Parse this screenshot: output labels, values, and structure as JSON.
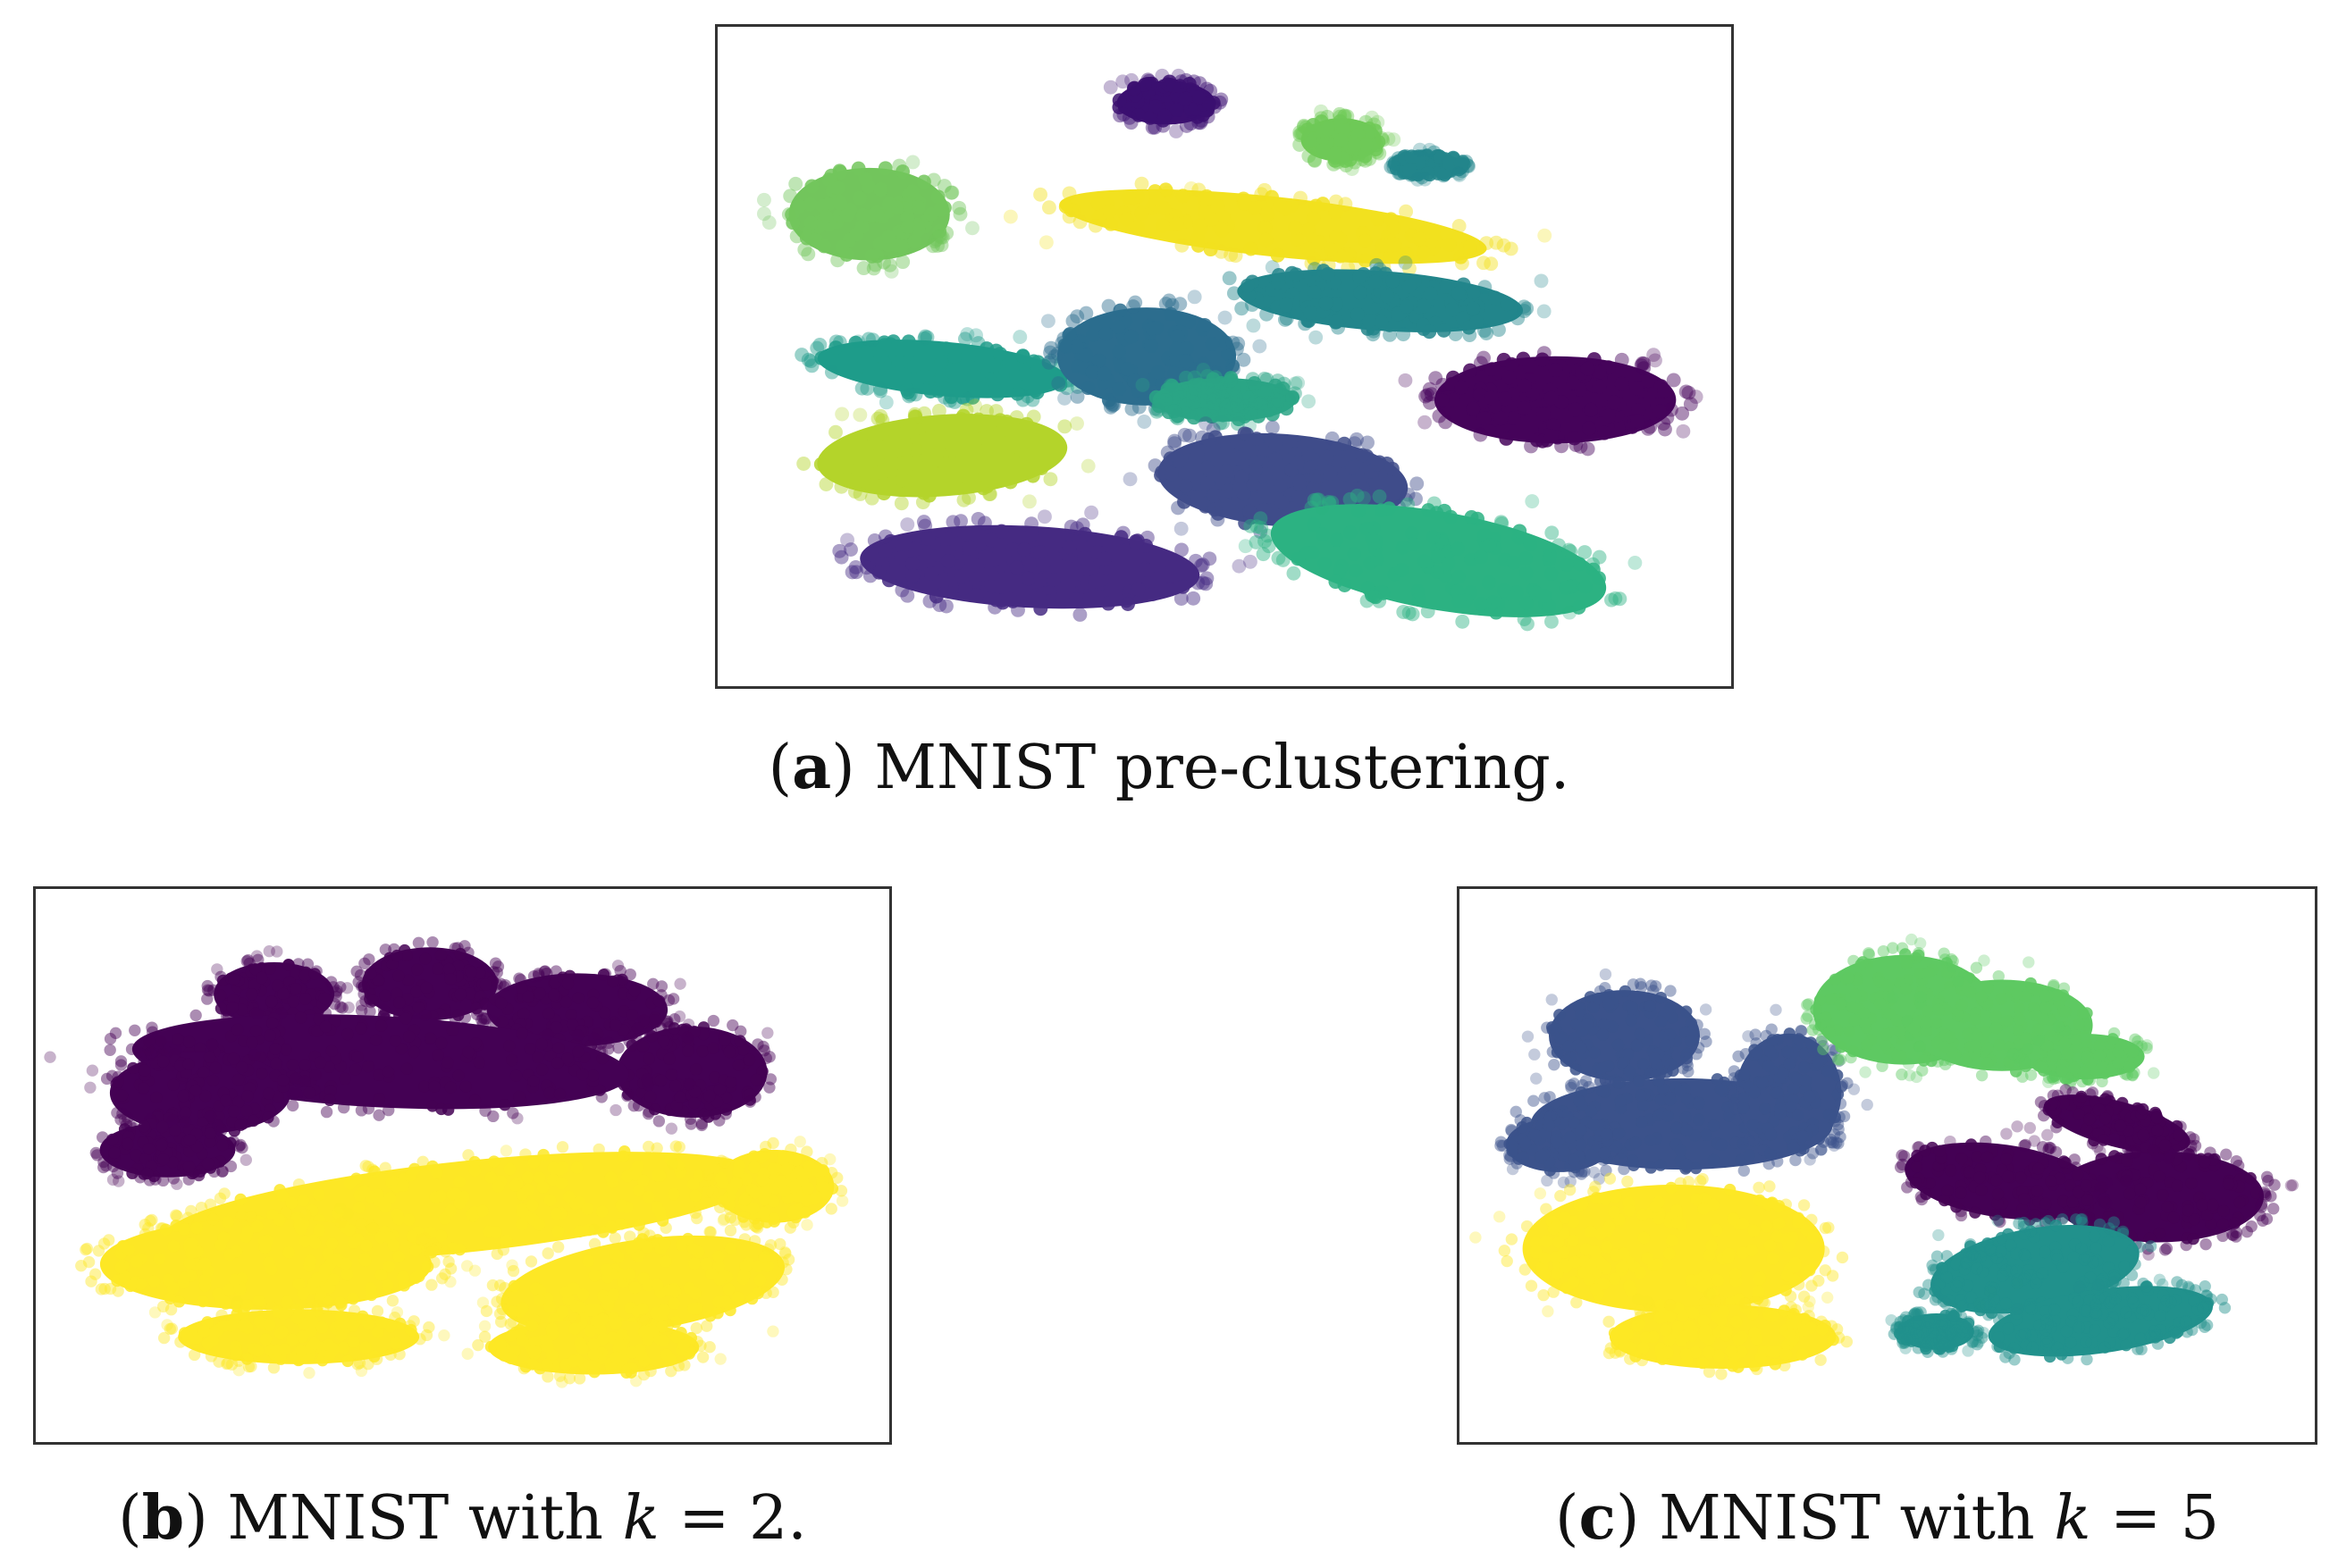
{
  "chart_data": [
    {
      "type": "scatter",
      "id": "a",
      "caption": {
        "label": "a",
        "text": "MNIST pre-clustering."
      },
      "title": "",
      "xlabel": "",
      "ylabel": "",
      "axis_ticks": false,
      "grid": false,
      "legend": "none",
      "xlim": [
        0,
        100
      ],
      "ylim": [
        0,
        100
      ],
      "series": [
        {
          "color": "#3b0f70",
          "clusters": [
            {
              "cx": 44,
              "cy": 91,
              "rx": 5.5,
              "ry": 4,
              "rot": 0
            }
          ]
        },
        {
          "color": "#72c55c",
          "clusters": [
            {
              "cx": 13.5,
              "cy": 73,
              "rx": 9,
              "ry": 8.5,
              "rot": 0
            }
          ]
        },
        {
          "color": "#6fc957",
          "clusters": [
            {
              "cx": 62,
              "cy": 85,
              "rx": 4.5,
              "ry": 4,
              "rot": 0
            }
          ]
        },
        {
          "color": "#f2e11f",
          "clusters": [
            {
              "cx": 55,
              "cy": 71,
              "rx": 24,
              "ry": 5.5,
              "rot": -6
            }
          ]
        },
        {
          "color": "#22858b",
          "clusters": [
            {
              "cx": 66,
              "cy": 59,
              "rx": 16,
              "ry": 5.5,
              "rot": -4
            },
            {
              "cx": 71,
              "cy": 81,
              "rx": 4,
              "ry": 2,
              "rot": 0
            }
          ]
        },
        {
          "color": "#1e9c8a",
          "clusters": [
            {
              "cx": 21,
              "cy": 48,
              "rx": 14,
              "ry": 5,
              "rot": -5
            }
          ]
        },
        {
          "color": "#2c6d8e",
          "clusters": [
            {
              "cx": 42,
              "cy": 50,
              "rx": 10,
              "ry": 9,
              "rot": 0
            }
          ]
        },
        {
          "color": "#2aa585",
          "clusters": [
            {
              "cx": 50,
              "cy": 43,
              "rx": 8,
              "ry": 4,
              "rot": 0
            }
          ]
        },
        {
          "color": "#45035a",
          "clusters": [
            {
              "cx": 84,
              "cy": 43,
              "rx": 13.5,
              "ry": 8,
              "rot": 0
            }
          ]
        },
        {
          "color": "#b4d42a",
          "clusters": [
            {
              "cx": 21,
              "cy": 34,
              "rx": 14,
              "ry": 7.5,
              "rot": 4
            }
          ]
        },
        {
          "color": "#3f4c8a",
          "clusters": [
            {
              "cx": 56,
              "cy": 30,
              "rx": 14,
              "ry": 8.5,
              "rot": -4
            }
          ]
        },
        {
          "color": "#452a82",
          "clusters": [
            {
              "cx": 30,
              "cy": 16,
              "rx": 19,
              "ry": 7.5,
              "rot": -3
            }
          ]
        },
        {
          "color": "#2cb282",
          "clusters": [
            {
              "cx": 72,
              "cy": 17,
              "rx": 19,
              "ry": 9,
              "rot": -10
            }
          ]
        }
      ]
    },
    {
      "type": "scatter",
      "id": "b",
      "caption": {
        "label": "b",
        "pre": "MNIST with ",
        "var": "k",
        "eq": " = 2."
      },
      "title": "",
      "xlabel": "",
      "ylabel": "",
      "axis_ticks": false,
      "grid": false,
      "legend": "none",
      "xlim": [
        0,
        100
      ],
      "ylim": [
        0,
        100
      ],
      "series": [
        {
          "color": "#440154",
          "clusters": [
            {
              "cx": 27,
              "cy": 83,
              "rx": 8,
              "ry": 7,
              "rot": 0
            },
            {
              "cx": 46,
              "cy": 85,
              "rx": 9,
              "ry": 8,
              "rot": 0
            },
            {
              "cx": 64,
              "cy": 80,
              "rx": 12,
              "ry": 8,
              "rot": 0
            },
            {
              "cx": 78,
              "cy": 68,
              "rx": 10,
              "ry": 10,
              "rot": 0
            },
            {
              "cx": 40,
              "cy": 70,
              "rx": 33,
              "ry": 10,
              "rot": -3
            },
            {
              "cx": 18,
              "cy": 64,
              "rx": 12,
              "ry": 9,
              "rot": 0
            },
            {
              "cx": 14,
              "cy": 53,
              "rx": 9,
              "ry": 6,
              "rot": 0
            }
          ]
        },
        {
          "color": "#fde725",
          "clusters": [
            {
              "cx": 50,
              "cy": 42,
              "rx": 40,
              "ry": 10,
              "rot": 6
            },
            {
              "cx": 26,
              "cy": 31,
              "rx": 22,
              "ry": 10,
              "rot": 0
            },
            {
              "cx": 72,
              "cy": 27,
              "rx": 19,
              "ry": 10,
              "rot": 8
            },
            {
              "cx": 88,
              "cy": 46,
              "rx": 8,
              "ry": 8,
              "rot": 0
            },
            {
              "cx": 30,
              "cy": 17,
              "rx": 16,
              "ry": 6,
              "rot": 0
            },
            {
              "cx": 66,
              "cy": 15,
              "rx": 14,
              "ry": 6,
              "rot": 0
            }
          ]
        }
      ]
    },
    {
      "type": "scatter",
      "id": "c",
      "caption": {
        "label": "c",
        "pre": "MNIST with ",
        "var": "k",
        "eq": " = 5"
      },
      "title": "",
      "xlabel": "",
      "ylabel": "",
      "axis_ticks": false,
      "grid": false,
      "legend": "none",
      "xlim": [
        0,
        100
      ],
      "ylim": [
        0,
        100
      ],
      "series": [
        {
          "color": "#3b528b",
          "clusters": [
            {
              "cx": 18,
              "cy": 75,
              "rx": 10,
              "ry": 10,
              "rot": 0
            },
            {
              "cx": 25,
              "cy": 58,
              "rx": 20,
              "ry": 10,
              "rot": 0
            },
            {
              "cx": 38,
              "cy": 64,
              "rx": 7,
              "ry": 13,
              "rot": 0
            },
            {
              "cx": 10,
              "cy": 54,
              "rx": 7,
              "ry": 6,
              "rot": 0
            }
          ]
        },
        {
          "color": "#5ec962",
          "clusters": [
            {
              "cx": 52,
              "cy": 80,
              "rx": 12,
              "ry": 12,
              "rot": 0
            },
            {
              "cx": 64,
              "cy": 77,
              "rx": 12,
              "ry": 10,
              "rot": 0
            },
            {
              "cx": 74,
              "cy": 71,
              "rx": 8,
              "ry": 5,
              "rot": 0
            }
          ]
        },
        {
          "color": "#440154",
          "clusters": [
            {
              "cx": 83,
              "cy": 44,
              "rx": 14,
              "ry": 10,
              "rot": 0
            },
            {
              "cx": 64,
              "cy": 47,
              "rx": 13,
              "ry": 8,
              "rot": -8
            },
            {
              "cx": 78,
              "cy": 58,
              "rx": 10,
              "ry": 5,
              "rot": -15
            }
          ]
        },
        {
          "color": "#fde725",
          "clusters": [
            {
              "cx": 24,
              "cy": 34,
              "rx": 20,
              "ry": 14,
              "rot": 0
            },
            {
              "cx": 30,
              "cy": 17,
              "rx": 15,
              "ry": 7,
              "rot": 0
            }
          ]
        },
        {
          "color": "#21918c",
          "clusters": [
            {
              "cx": 68,
              "cy": 30,
              "rx": 14,
              "ry": 9,
              "rot": 10
            },
            {
              "cx": 76,
              "cy": 20,
              "rx": 15,
              "ry": 7,
              "rot": 8
            },
            {
              "cx": 56,
              "cy": 18,
              "rx": 5,
              "ry": 4,
              "rot": 0
            }
          ]
        }
      ]
    }
  ]
}
